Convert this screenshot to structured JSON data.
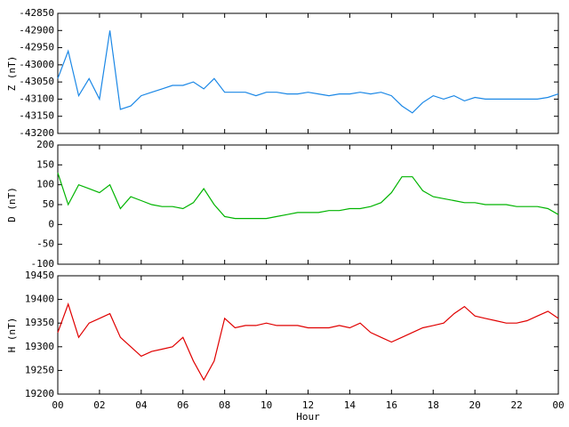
{
  "chart_data": [
    {
      "type": "line",
      "ylabel": "Z (nT)",
      "ylim": [
        -43200,
        -42850
      ],
      "yticks": [
        -43200,
        -43150,
        -43100,
        -43050,
        -43000,
        -42950,
        -42900,
        -42850
      ],
      "xlim": [
        0,
        24
      ],
      "x": [
        0,
        0.5,
        1,
        1.5,
        2,
        2.5,
        3,
        3.5,
        4,
        4.5,
        5,
        5.5,
        6,
        6.5,
        7,
        7.5,
        8,
        8.5,
        9,
        9.5,
        10,
        10.5,
        11,
        11.5,
        12,
        12.5,
        13,
        13.5,
        14,
        14.5,
        15,
        15.5,
        16,
        16.5,
        17,
        17.5,
        18,
        18.5,
        19,
        19.5,
        20,
        20.5,
        21,
        21.5,
        22,
        22.5,
        23,
        23.5,
        24
      ],
      "series": [
        {
          "name": "Z",
          "color": "#1a87e6",
          "values": [
            -43040,
            -42960,
            -43090,
            -43040,
            -43100,
            -42900,
            -43130,
            -43120,
            -43090,
            -43080,
            -43070,
            -43060,
            -43060,
            -43050,
            -43070,
            -43040,
            -43080,
            -43080,
            -43080,
            -43090,
            -43080,
            -43080,
            -43085,
            -43085,
            -43080,
            -43085,
            -43090,
            -43085,
            -43085,
            -43080,
            -43085,
            -43080,
            -43090,
            -43120,
            -43140,
            -43110,
            -43090,
            -43100,
            -43090,
            -43105,
            -43095,
            -43100,
            -43100,
            -43100,
            -43100,
            -43100,
            -43100,
            -43095,
            -43085
          ]
        }
      ]
    },
    {
      "type": "line",
      "ylabel": "D (nT)",
      "ylim": [
        -100,
        200
      ],
      "yticks": [
        -100,
        -50,
        0,
        50,
        100,
        150,
        200
      ],
      "xlim": [
        0,
        24
      ],
      "x": [
        0,
        0.5,
        1,
        1.5,
        2,
        2.5,
        3,
        3.5,
        4,
        4.5,
        5,
        5.5,
        6,
        6.5,
        7,
        7.5,
        8,
        8.5,
        9,
        9.5,
        10,
        10.5,
        11,
        11.5,
        12,
        12.5,
        13,
        13.5,
        14,
        14.5,
        15,
        15.5,
        16,
        16.5,
        17,
        17.5,
        18,
        18.5,
        19,
        19.5,
        20,
        20.5,
        21,
        21.5,
        22,
        22.5,
        23,
        23.5,
        24
      ],
      "series": [
        {
          "name": "D",
          "color": "#00b400",
          "values": [
            130,
            50,
            100,
            90,
            80,
            100,
            40,
            70,
            60,
            50,
            45,
            45,
            40,
            55,
            90,
            50,
            20,
            15,
            15,
            15,
            15,
            20,
            25,
            30,
            30,
            30,
            35,
            35,
            40,
            40,
            45,
            55,
            80,
            120,
            120,
            85,
            70,
            65,
            60,
            55,
            55,
            50,
            50,
            50,
            45,
            45,
            45,
            40,
            25
          ]
        }
      ]
    },
    {
      "type": "line",
      "ylabel": "H (nT)",
      "xlabel": "Hour",
      "ylim": [
        19200,
        19450
      ],
      "yticks": [
        19200,
        19250,
        19300,
        19350,
        19400,
        19450
      ],
      "xlim": [
        0,
        24
      ],
      "xticks": [
        {
          "value": 0,
          "label": "00"
        },
        {
          "value": 2,
          "label": "02"
        },
        {
          "value": 4,
          "label": "04"
        },
        {
          "value": 6,
          "label": "06"
        },
        {
          "value": 8,
          "label": "08"
        },
        10,
        12,
        14,
        16,
        18,
        20,
        22,
        {
          "value": 24,
          "label": "00"
        }
      ],
      "x": [
        0,
        0.5,
        1,
        1.5,
        2,
        2.5,
        3,
        3.5,
        4,
        4.5,
        5,
        5.5,
        6,
        6.5,
        7,
        7.5,
        8,
        8.5,
        9,
        9.5,
        10,
        10.5,
        11,
        11.5,
        12,
        12.5,
        13,
        13.5,
        14,
        14.5,
        15,
        15.5,
        16,
        16.5,
        17,
        17.5,
        18,
        18.5,
        19,
        19.5,
        20,
        20.5,
        21,
        21.5,
        22,
        22.5,
        23,
        23.5,
        24
      ],
      "series": [
        {
          "name": "H",
          "color": "#e00000",
          "values": [
            19330,
            19390,
            19320,
            19350,
            19360,
            19370,
            19320,
            19300,
            19280,
            19290,
            19295,
            19300,
            19320,
            19270,
            19230,
            19270,
            19360,
            19340,
            19345,
            19345,
            19350,
            19345,
            19345,
            19345,
            19340,
            19340,
            19340,
            19345,
            19340,
            19350,
            19330,
            19320,
            19310,
            19320,
            19330,
            19340,
            19345,
            19350,
            19370,
            19385,
            19365,
            19360,
            19355,
            19350,
            19350,
            19355,
            19365,
            19375,
            19360
          ]
        }
      ]
    }
  ]
}
